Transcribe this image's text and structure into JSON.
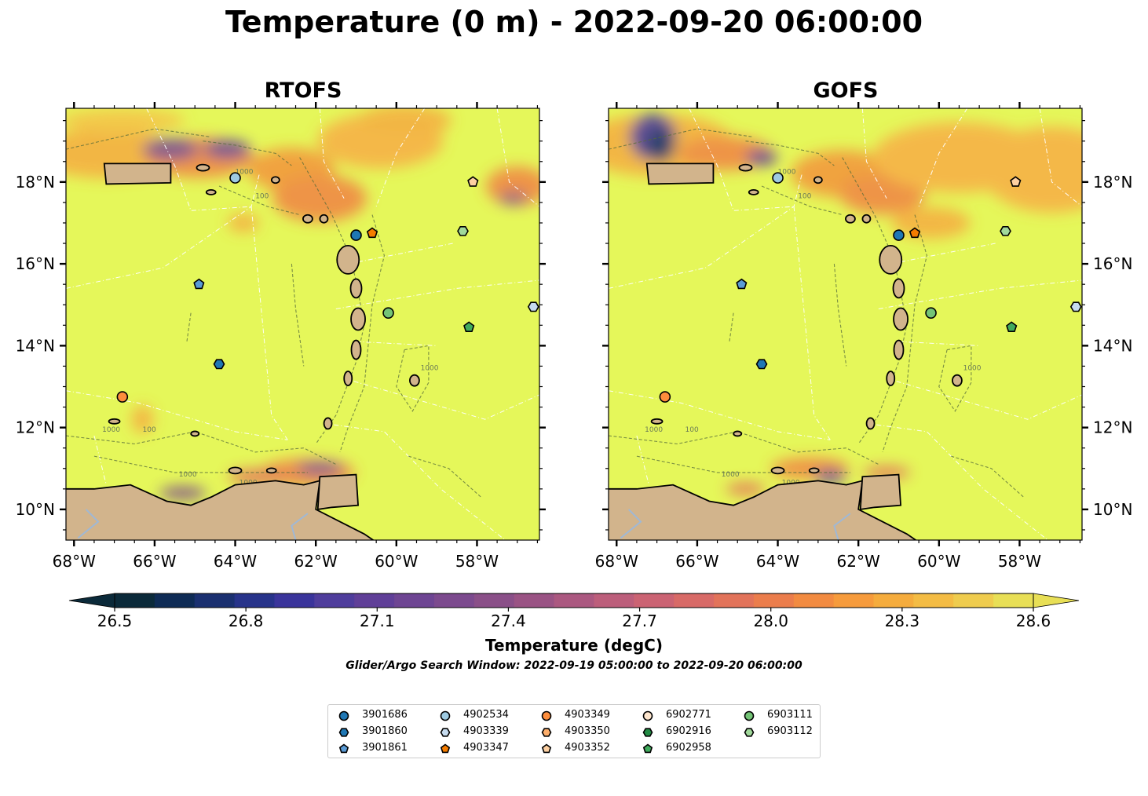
{
  "title": "Temperature (0 m) - 2022-09-20 06:00:00",
  "panels": [
    {
      "title": "RTOFS"
    },
    {
      "title": "GOFS"
    }
  ],
  "axes": {
    "lon_ticks": [
      "68°W",
      "66°W",
      "64°W",
      "62°W",
      "60°W",
      "58°W"
    ],
    "lat_ticks": [
      "18°N",
      "16°N",
      "14°N",
      "12°N",
      "10°N"
    ]
  },
  "contour_labels": {
    "depth_label": "1000",
    "depth_label_2": "100"
  },
  "colorbar": {
    "label": "Temperature (degC)",
    "ticks": [
      "26.5",
      "26.8",
      "27.1",
      "27.4",
      "27.7",
      "28.0",
      "28.3",
      "28.6"
    ],
    "extend": "both",
    "colors": [
      "#0b2a3a",
      "#0e2b55",
      "#1a3070",
      "#27338a",
      "#3a349b",
      "#4f3d9c",
      "#603f98",
      "#6e4593",
      "#7c4a8e",
      "#8a4f88",
      "#9a5384",
      "#ab5880",
      "#bc5e7b",
      "#cb6373",
      "#d86a67",
      "#e2735a",
      "#eb7d4c",
      "#f28b41",
      "#f69b3c",
      "#f5ac3d",
      "#f4bc44",
      "#efcc4e",
      "#e8df56"
    ]
  },
  "search_window": "Glider/Argo Search Window: 2022-09-19 05:00:00 to 2022-09-20 06:00:00",
  "colors": {
    "ocean_base": "#e5f75a",
    "land": "#d2b48c",
    "river": "#9fb8d6"
  },
  "floats": [
    {
      "id": "3901686",
      "marker": "circle",
      "color": "#1f77b4",
      "lon": -61.0,
      "lat": 16.7
    },
    {
      "id": "3901860",
      "marker": "hexagon",
      "color": "#1f77b4",
      "lon": -64.4,
      "lat": 13.55
    },
    {
      "id": "3901861",
      "marker": "pentagon",
      "color": "#5a9bd5",
      "lon": -64.9,
      "lat": 15.5
    },
    {
      "id": "4902534",
      "marker": "circle",
      "color": "#9ecae1",
      "lon": -64.0,
      "lat": 18.1
    },
    {
      "id": "4903339",
      "marker": "hexagon",
      "color": "#c6dbef",
      "lon": -56.6,
      "lat": 14.95
    },
    {
      "id": "4903347",
      "marker": "pentagon",
      "color": "#f57c00",
      "lon": -60.6,
      "lat": 16.75
    },
    {
      "id": "4903349",
      "marker": "circle",
      "color": "#fd8d3c",
      "lon": -66.8,
      "lat": 12.75
    },
    {
      "id": "4903350",
      "marker": "hexagon",
      "color": "#fdae6b",
      "lon": null,
      "lat": null
    },
    {
      "id": "4903352",
      "marker": "pentagon",
      "color": "#fdd0a2",
      "lon": -58.1,
      "lat": 18.0
    },
    {
      "id": "6902771",
      "marker": "circle",
      "color": "#fee6ce",
      "lon": null,
      "lat": null
    },
    {
      "id": "6902916",
      "marker": "hexagon",
      "color": "#238b45",
      "lon": null,
      "lat": null
    },
    {
      "id": "6902958",
      "marker": "pentagon",
      "color": "#41ab5d",
      "lon": -58.2,
      "lat": 14.45
    },
    {
      "id": "6903111",
      "marker": "circle",
      "color": "#74c476",
      "lon": -60.2,
      "lat": 14.8
    },
    {
      "id": "6903112",
      "marker": "hexagon",
      "color": "#a1d99b",
      "lon": -58.35,
      "lat": 16.8
    }
  ]
}
